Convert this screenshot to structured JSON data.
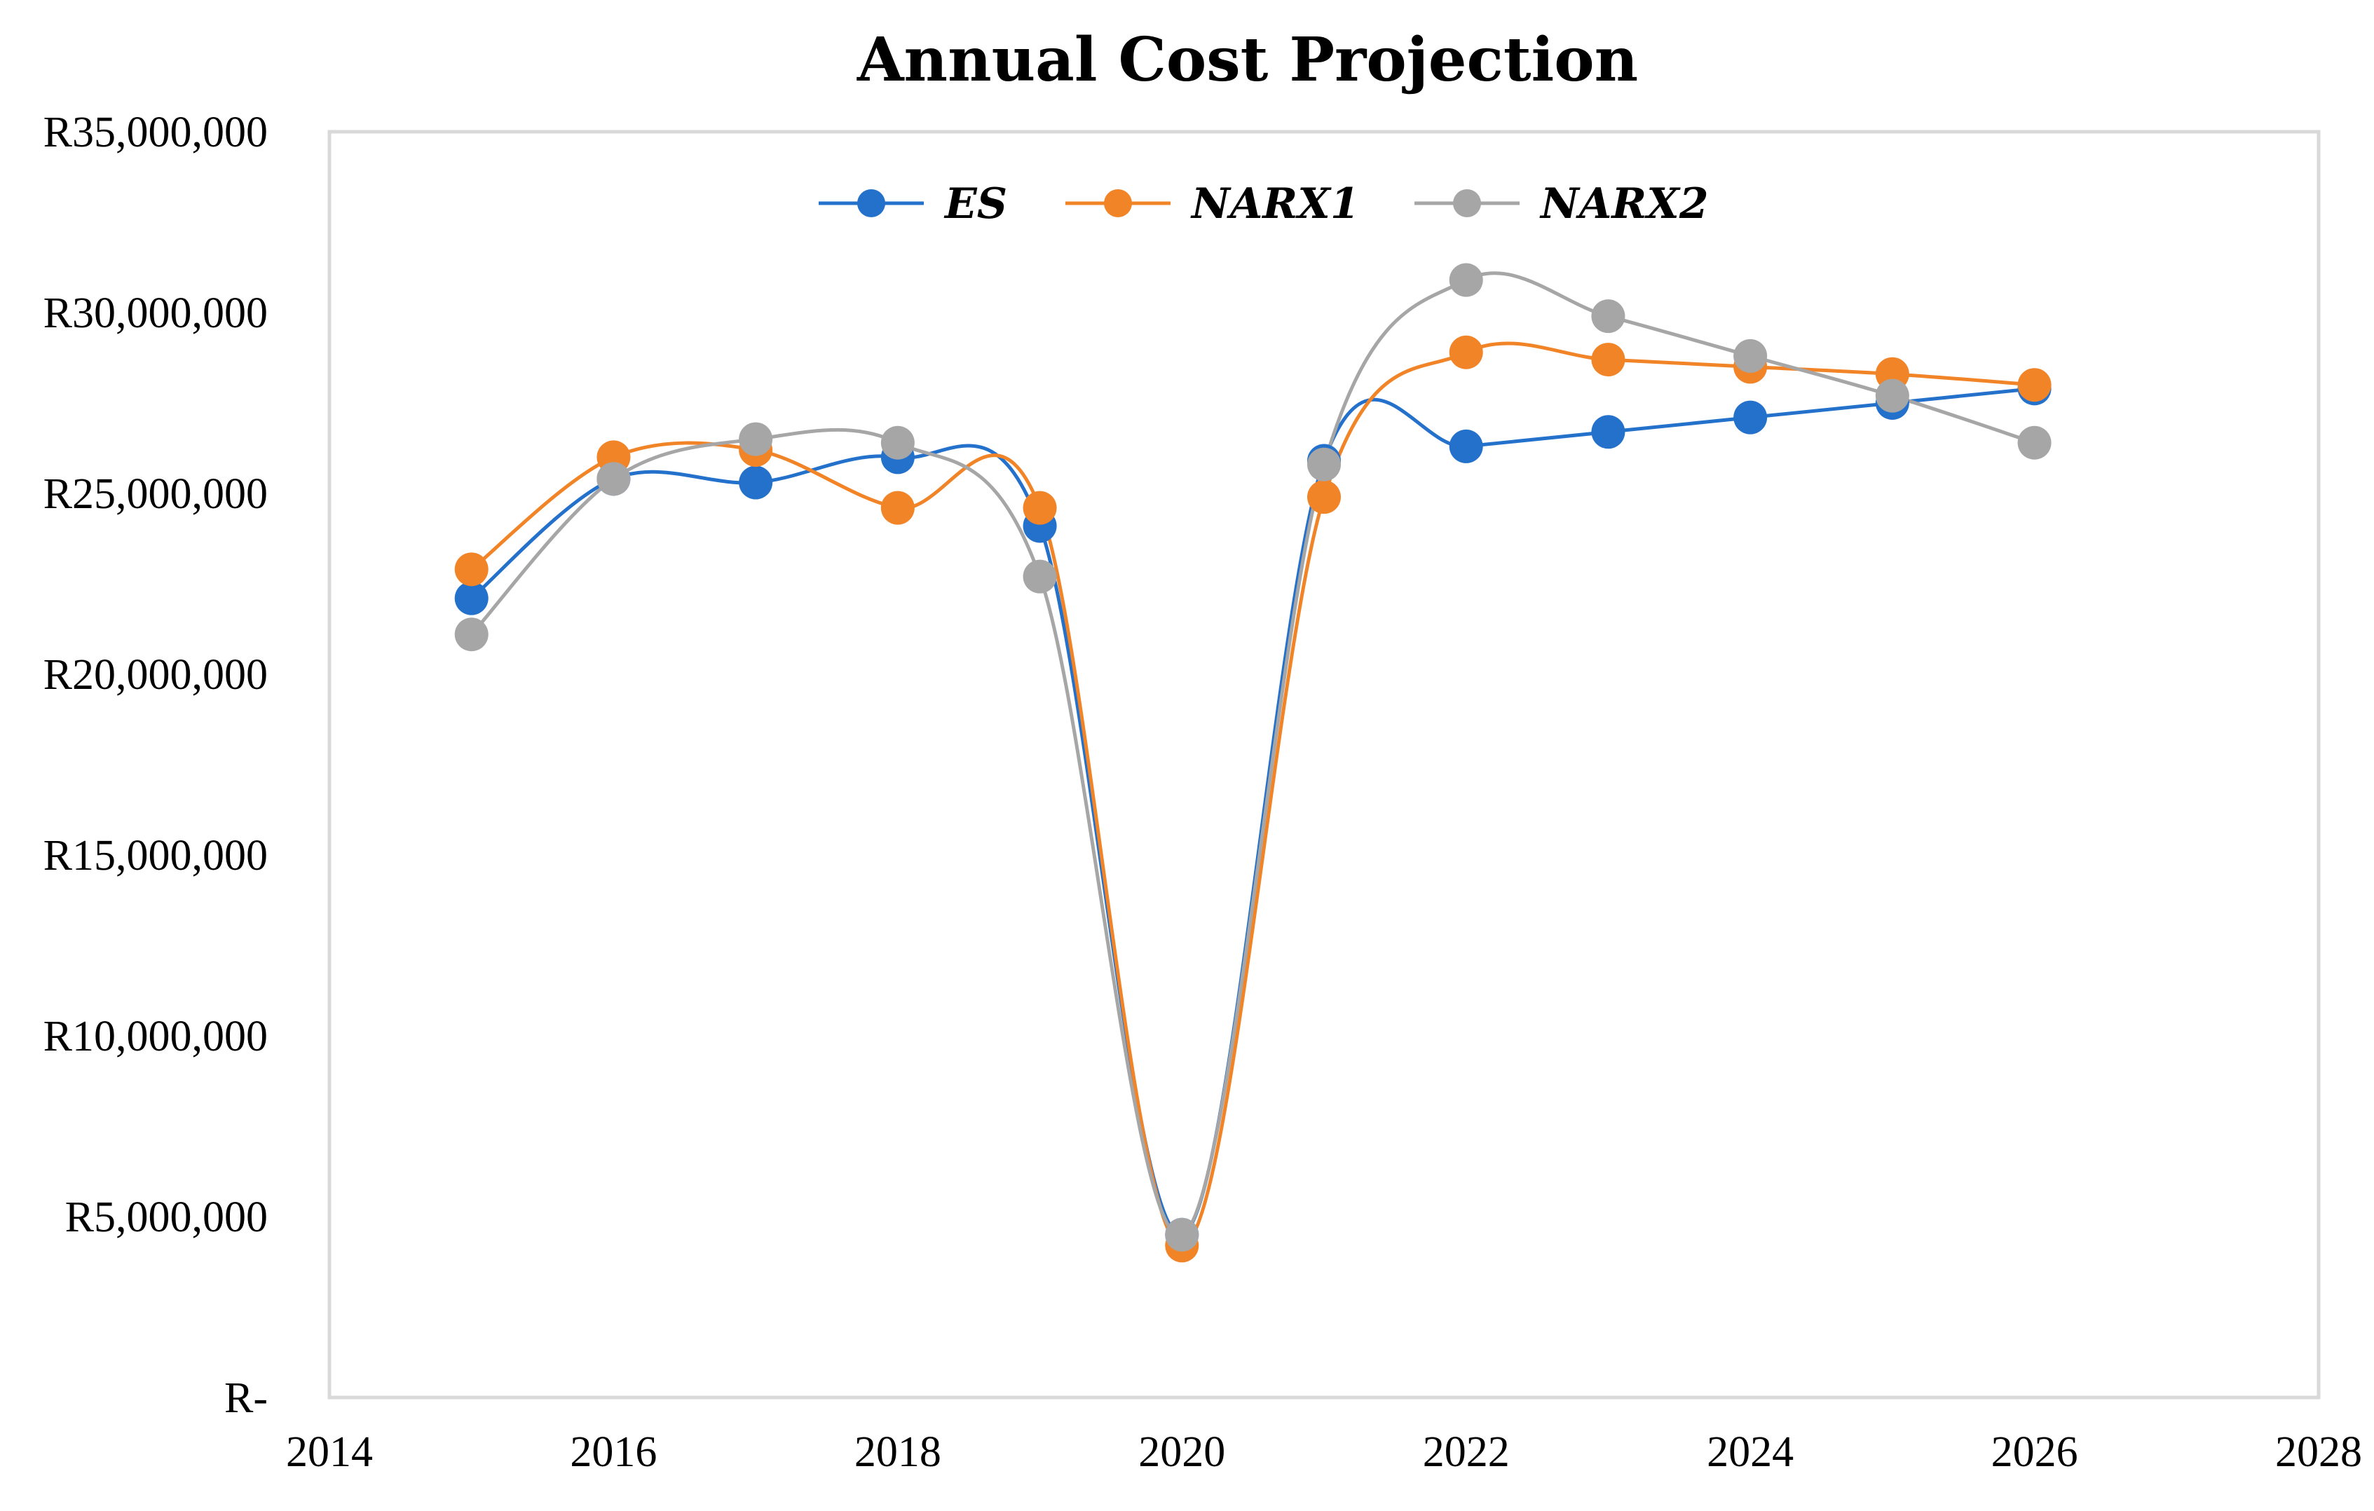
{
  "chart_data": {
    "type": "line",
    "title": "Annual Cost Projection",
    "xlabel": "",
    "ylabel": "",
    "xlim": [
      2014,
      2028
    ],
    "ylim": [
      0,
      35000000
    ],
    "x_ticks": [
      "2014",
      "2016",
      "2018",
      "2020",
      "2022",
      "2024",
      "2026",
      "2028"
    ],
    "y_ticks": [
      "R-",
      "R5,000,000",
      "R10,000,000",
      "R15,000,000",
      "R20,000,000",
      "R25,000,000",
      "R30,000,000",
      "R35,000,000"
    ],
    "grid": false,
    "smooth": true,
    "legend_position": "top-center",
    "x": [
      2015,
      2016,
      2017,
      2018,
      2019,
      2020,
      2021,
      2022,
      2023,
      2024,
      2025,
      2026
    ],
    "series": [
      {
        "name": "ES",
        "color": "#2471CC",
        "values": [
          22100000,
          25400000,
          25300000,
          26000000,
          24100000,
          4500000,
          25900000,
          26300000,
          26700000,
          27100000,
          27500000,
          27900000
        ]
      },
      {
        "name": "NARX1",
        "color": "#F28428",
        "values": [
          22900000,
          26000000,
          26200000,
          24600000,
          24600000,
          4200000,
          24900000,
          28900000,
          28700000,
          28500000,
          28300000,
          28000000
        ]
      },
      {
        "name": "NARX2",
        "color": "#A6A6A6",
        "values": [
          21100000,
          25400000,
          26500000,
          26400000,
          22700000,
          4500000,
          25800000,
          30900000,
          29900000,
          28800000,
          27700000,
          26400000
        ]
      }
    ]
  }
}
